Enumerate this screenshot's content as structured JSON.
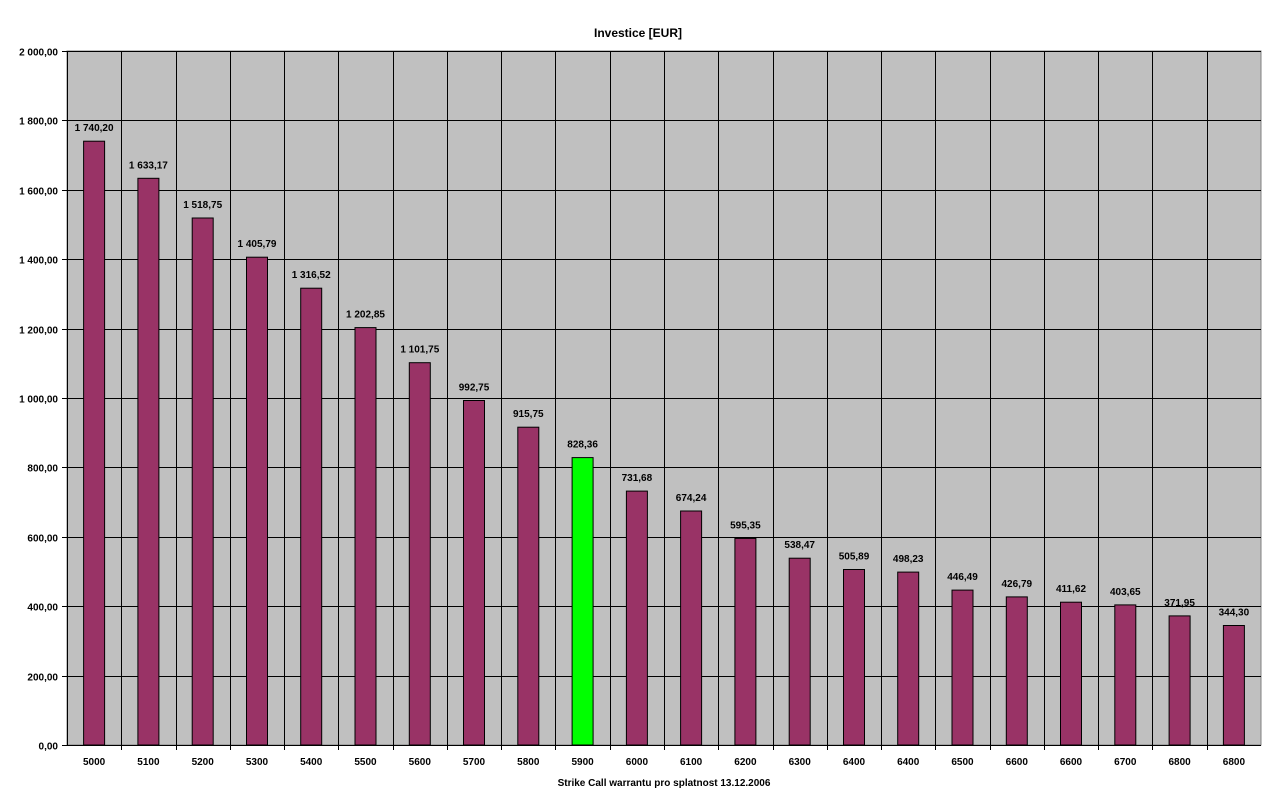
{
  "chart_data": {
    "type": "bar",
    "title": "Investice [EUR]",
    "xlabel": "Strike Call warrantu pro splatnost 13.12.2006",
    "ylabel": "",
    "ylim": [
      0,
      2000
    ],
    "ytick_labels": [
      "0,00",
      "200,00",
      "400,00",
      "600,00",
      "800,00",
      "1 000,00",
      "1 200,00",
      "1 400,00",
      "1 600,00",
      "1 800,00",
      "2 000,00"
    ],
    "grid": true,
    "plot_background": "#C0C0C0",
    "bar_color": "#993366",
    "highlight_color": "#00FF00",
    "highlight_index": 9,
    "categories": [
      "5000",
      "5100",
      "5200",
      "5300",
      "5400",
      "5500",
      "5600",
      "5700",
      "5800",
      "5900",
      "6000",
      "6100",
      "6200",
      "6300",
      "6400",
      "6400",
      "6500",
      "6600",
      "6600",
      "6700",
      "6800",
      "6800"
    ],
    "values": [
      1740.2,
      1633.17,
      1518.75,
      1405.79,
      1316.52,
      1202.85,
      1101.75,
      992.75,
      915.75,
      828.36,
      731.68,
      674.24,
      595.35,
      538.47,
      505.89,
      498.23,
      446.49,
      426.79,
      411.62,
      403.65,
      371.95,
      344.3
    ],
    "value_labels": [
      "1 740,20",
      "1 633,17",
      "1 518,75",
      "1 405,79",
      "1 316,52",
      "1 202,85",
      "1 101,75",
      "992,75",
      "915,75",
      "828,36",
      "731,68",
      "674,24",
      "595,35",
      "538,47",
      "505,89",
      "498,23",
      "446,49",
      "426,79",
      "411,62",
      "403,65",
      "371,95",
      "344,30"
    ]
  }
}
